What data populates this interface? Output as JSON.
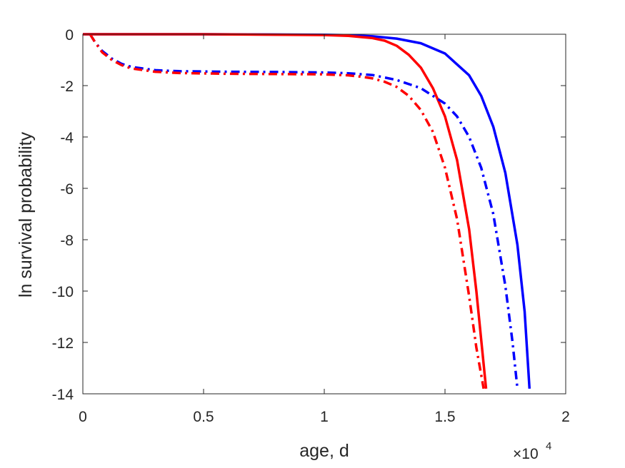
{
  "chart_data": {
    "type": "line",
    "title": "",
    "xlabel": "age, d",
    "ylabel": "ln survival probability",
    "x_exponent_label": "×10",
    "x_exponent_power": "4",
    "xlim": [
      0,
      20000
    ],
    "ylim": [
      -14,
      0
    ],
    "x_ticks": [
      0,
      5000,
      10000,
      15000,
      20000
    ],
    "x_tick_labels": [
      "0",
      "0.5",
      "1",
      "1.5",
      "2"
    ],
    "y_ticks": [
      0,
      -2,
      -4,
      -6,
      -8,
      -10,
      -12,
      -14
    ],
    "y_tick_labels": [
      "0",
      "-2",
      "-4",
      "-6",
      "-8",
      "-10",
      "-12",
      "-14"
    ],
    "grid": false,
    "series": [
      {
        "color": "#0000ff",
        "style": "solid",
        "x": [
          0,
          5000,
          10000,
          11000,
          12000,
          13000,
          14000,
          15000,
          16000,
          16500,
          17000,
          17500,
          18000,
          18300,
          18500
        ],
        "y": [
          0,
          0,
          -0.02,
          -0.04,
          -0.08,
          -0.17,
          -0.35,
          -0.75,
          -1.6,
          -2.4,
          -3.6,
          -5.4,
          -8.2,
          -10.8,
          -13.8
        ]
      },
      {
        "color": "#ff0000",
        "style": "solid",
        "x": [
          0,
          5000,
          10000,
          11000,
          12000,
          12500,
          13000,
          13500,
          14000,
          14500,
          15000,
          15500,
          16000,
          16300,
          16500,
          16700
        ],
        "y": [
          0,
          0,
          -0.03,
          -0.06,
          -0.15,
          -0.25,
          -0.45,
          -0.8,
          -1.3,
          -2.1,
          -3.2,
          -4.9,
          -7.6,
          -10.0,
          -11.9,
          -13.8
        ]
      },
      {
        "color": "#0000ff",
        "style": "dashdot",
        "x": [
          300,
          500,
          800,
          1200,
          1600,
          2000,
          3000,
          4000,
          6000,
          8000,
          10000,
          11000,
          12000,
          13000,
          14000,
          15000,
          15500,
          16000,
          16500,
          17000,
          17500,
          17800,
          18000
        ],
        "y": [
          0,
          -0.3,
          -0.65,
          -0.95,
          -1.15,
          -1.27,
          -1.4,
          -1.44,
          -1.46,
          -1.47,
          -1.49,
          -1.52,
          -1.59,
          -1.78,
          -2.1,
          -2.7,
          -3.2,
          -4.0,
          -5.2,
          -7.0,
          -9.8,
          -12.0,
          -13.8
        ]
      },
      {
        "color": "#ff0000",
        "style": "dashdot",
        "x": [
          300,
          500,
          800,
          1200,
          1600,
          2000,
          3000,
          4000,
          6000,
          8000,
          10000,
          11000,
          11500,
          12000,
          12500,
          13000,
          13500,
          14000,
          14500,
          15000,
          15500,
          16000,
          16300,
          16600
        ],
        "y": [
          0,
          -0.3,
          -0.7,
          -1.0,
          -1.2,
          -1.33,
          -1.46,
          -1.51,
          -1.54,
          -1.55,
          -1.56,
          -1.6,
          -1.65,
          -1.72,
          -1.85,
          -2.05,
          -2.4,
          -2.95,
          -3.8,
          -5.2,
          -7.2,
          -10.2,
          -12.2,
          -13.8
        ]
      }
    ]
  }
}
